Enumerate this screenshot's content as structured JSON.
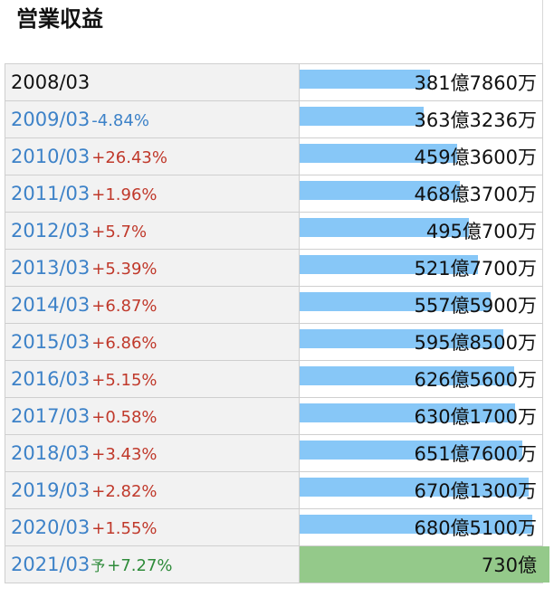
{
  "title": "営業収益",
  "rows": [
    {
      "period": "2008/03",
      "change": "",
      "forecast_mark": "",
      "value_label": "381億7860万",
      "value": 381.786,
      "forecast": false,
      "base": true
    },
    {
      "period": "2009/03",
      "change": "-4.84%",
      "forecast_mark": "",
      "value_label": "363億3236万",
      "value": 363.3236,
      "forecast": false
    },
    {
      "period": "2010/03",
      "change": "+26.43%",
      "forecast_mark": "",
      "value_label": "459億3600万",
      "value": 459.36,
      "forecast": false
    },
    {
      "period": "2011/03",
      "change": "+1.96%",
      "forecast_mark": "",
      "value_label": "468億3700万",
      "value": 468.37,
      "forecast": false
    },
    {
      "period": "2012/03",
      "change": "+5.7%",
      "forecast_mark": "",
      "value_label": "495億700万",
      "value": 495.07,
      "forecast": false
    },
    {
      "period": "2013/03",
      "change": "+5.39%",
      "forecast_mark": "",
      "value_label": "521億7700万",
      "value": 521.77,
      "forecast": false
    },
    {
      "period": "2014/03",
      "change": "+6.87%",
      "forecast_mark": "",
      "value_label": "557億5900万",
      "value": 557.59,
      "forecast": false
    },
    {
      "period": "2015/03",
      "change": "+6.86%",
      "forecast_mark": "",
      "value_label": "595億8500万",
      "value": 595.85,
      "forecast": false
    },
    {
      "period": "2016/03",
      "change": "+5.15%",
      "forecast_mark": "",
      "value_label": "626億5600万",
      "value": 626.56,
      "forecast": false
    },
    {
      "period": "2017/03",
      "change": "+0.58%",
      "forecast_mark": "",
      "value_label": "630億1700万",
      "value": 630.17,
      "forecast": false
    },
    {
      "period": "2018/03",
      "change": "+3.43%",
      "forecast_mark": "",
      "value_label": "651億7600万",
      "value": 651.76,
      "forecast": false
    },
    {
      "period": "2019/03",
      "change": "+2.82%",
      "forecast_mark": "",
      "value_label": "670億1300万",
      "value": 670.13,
      "forecast": false
    },
    {
      "period": "2020/03",
      "change": "+1.55%",
      "forecast_mark": "",
      "value_label": "680億5100万",
      "value": 680.51,
      "forecast": false
    },
    {
      "period": "2021/03",
      "change": "+7.27%",
      "forecast_mark": "予",
      "value_label": "730億",
      "value": 730,
      "forecast": true
    }
  ],
  "colors": {
    "bar_actual": "#87c7f7",
    "bar_forecast": "#94c98a",
    "change_up": "#c0392b",
    "change_down": "#3d82c8",
    "change_forecast": "#2e8b3a",
    "period_link": "#3d82c8"
  },
  "chart_data": {
    "type": "bar",
    "orientation": "horizontal",
    "title": "営業収益",
    "categories": [
      "2008/03",
      "2009/03",
      "2010/03",
      "2011/03",
      "2012/03",
      "2013/03",
      "2014/03",
      "2015/03",
      "2016/03",
      "2017/03",
      "2018/03",
      "2019/03",
      "2020/03",
      "2021/03"
    ],
    "values": [
      381.786,
      363.3236,
      459.36,
      468.37,
      495.07,
      521.77,
      557.59,
      595.85,
      626.56,
      630.17,
      651.76,
      670.13,
      680.51,
      730
    ],
    "xlim": [
      0,
      730
    ]
  }
}
